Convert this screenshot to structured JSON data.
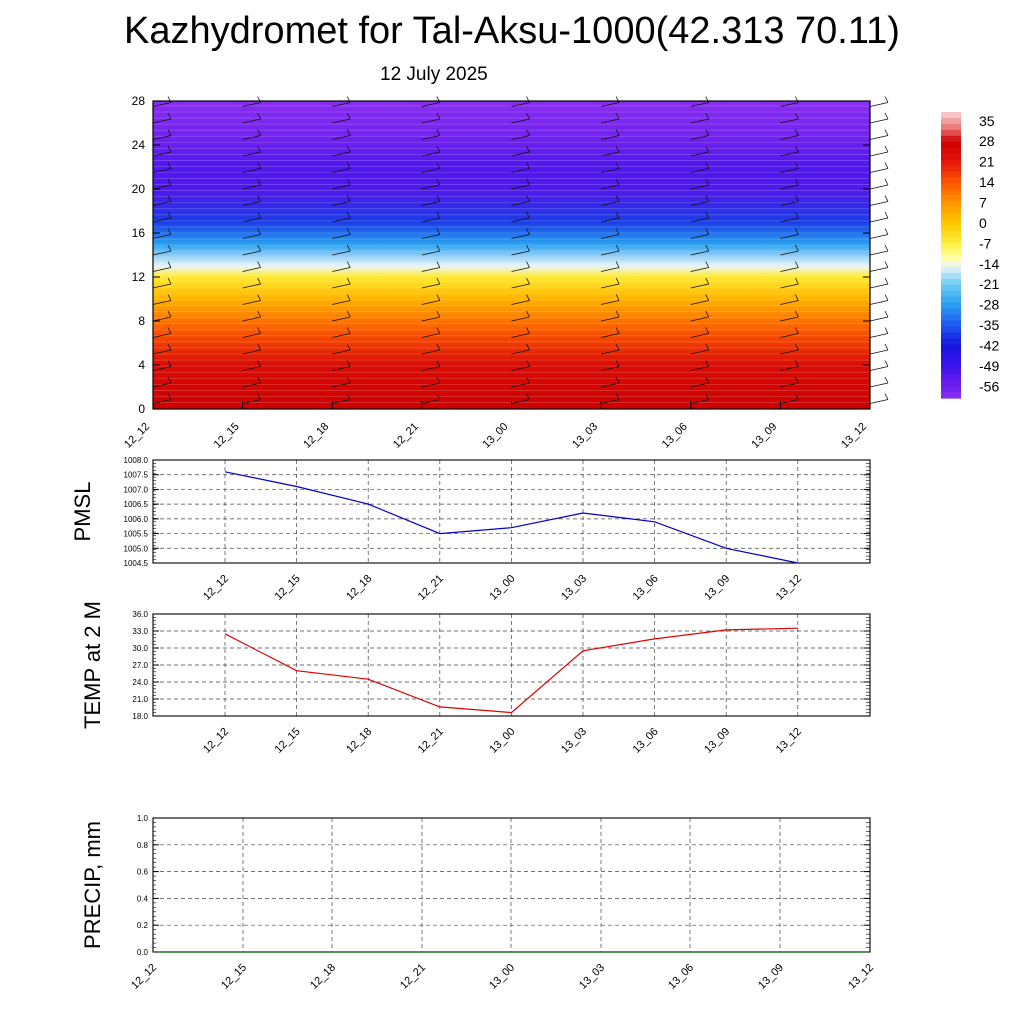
{
  "page": {
    "title": "Kazhydromet for Tal-Aksu-1000(42.313 70.11)",
    "date": "12 July 2025"
  },
  "chart_data": [
    {
      "id": "temperature-profile",
      "type": "heatmap",
      "x": [
        "12_12",
        "12_15",
        "12_18",
        "12_21",
        "13_00",
        "13_03",
        "13_06",
        "13_09",
        "13_12"
      ],
      "yticks": [
        0,
        4,
        8,
        12,
        16,
        20,
        24,
        28
      ],
      "ylim": [
        0,
        28
      ],
      "grid": false,
      "colorbar": {
        "labels": [
          "35",
          "28",
          "21",
          "14",
          "7",
          "0",
          "-7",
          "-14",
          "-21",
          "-28",
          "-35",
          "-42",
          "-49",
          "-56"
        ],
        "values": [
          35,
          28,
          21,
          14,
          7,
          0,
          -7,
          -14,
          -21,
          -28,
          -35,
          -42,
          -49,
          -56
        ],
        "range": [
          -60,
          38
        ],
        "placement": "right"
      },
      "profile": [
        {
          "level": 0,
          "value": 28
        },
        {
          "level": 4,
          "value": 24
        },
        {
          "level": 7,
          "value": 14
        },
        {
          "level": 10,
          "value": 3
        },
        {
          "level": 12,
          "value": -6
        },
        {
          "level": 13,
          "value": -15
        },
        {
          "level": 15,
          "value": -28
        },
        {
          "level": 17,
          "value": -38
        },
        {
          "level": 20,
          "value": -52
        },
        {
          "level": 22,
          "value": -52
        },
        {
          "level": 25,
          "value": -57
        },
        {
          "level": 28,
          "value": -60
        }
      ],
      "wind_barbs": true
    },
    {
      "id": "pmsl",
      "type": "line",
      "ylabel": "PMSL",
      "x": [
        "12_12",
        "12_15",
        "12_18",
        "12_21",
        "13_00",
        "13_03",
        "13_06",
        "13_09",
        "13_12"
      ],
      "ylim": [
        1004.5,
        1008.0
      ],
      "yticks": [
        "1004.5",
        "1005.0",
        "1005.5",
        "1006.0",
        "1006.5",
        "1007.0",
        "1007.5",
        "1008.0"
      ],
      "grid": true,
      "series": [
        {
          "color": "#0000cc",
          "values": [
            1007.6,
            1007.1,
            1006.5,
            1005.5,
            1005.7,
            1006.2,
            1005.9,
            1005.0,
            1004.5
          ]
        }
      ]
    },
    {
      "id": "temp2m",
      "type": "line",
      "ylabel": "TEMP at 2 M",
      "x": [
        "12_12",
        "12_15",
        "12_18",
        "12_21",
        "13_00",
        "13_03",
        "13_06",
        "13_09",
        "13_12"
      ],
      "ylim": [
        18.0,
        36.0
      ],
      "yticks": [
        "18.0",
        "21.0",
        "24.0",
        "27.0",
        "30.0",
        "33.0",
        "36.0"
      ],
      "grid": true,
      "series": [
        {
          "color": "#e00000",
          "values": [
            32.5,
            26.0,
            24.5,
            19.6,
            18.6,
            29.5,
            31.6,
            33.2,
            33.5
          ]
        }
      ]
    },
    {
      "id": "precip",
      "type": "line",
      "ylabel": "PRECIP, mm",
      "x": [
        "12_12",
        "12_15",
        "12_18",
        "12_21",
        "13_00",
        "13_03",
        "13_06",
        "13_09",
        "13_12"
      ],
      "ylim": [
        0.0,
        1.0
      ],
      "yticks": [
        "0.0",
        "0.2",
        "0.4",
        "0.6",
        "0.8",
        "1.0"
      ],
      "grid": true,
      "series": [
        {
          "color": "#006400",
          "values": [
            0,
            0,
            0,
            0,
            0,
            0,
            0,
            0,
            0
          ]
        }
      ]
    }
  ]
}
